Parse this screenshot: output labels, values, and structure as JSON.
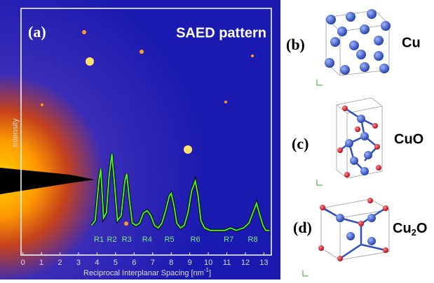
{
  "chart_data": {
    "type": "line",
    "panel_label": "(a)",
    "title": "SAED pattern",
    "x_label": "Reciprocal Interplanar Spacing [nm",
    "x_label_sup": "-1",
    "x_label_end": "]",
    "y_label": "Intensity",
    "x": [
      3.7,
      3.9,
      4.1,
      4.2,
      4.35,
      4.5,
      4.65,
      4.8,
      4.95,
      5.1,
      5.3,
      5.5,
      5.6,
      5.75,
      5.9,
      6.1,
      6.3,
      6.5,
      6.7,
      6.9,
      7.1,
      7.3,
      7.5,
      7.7,
      7.9,
      8.0,
      8.15,
      8.3,
      8.5,
      8.7,
      8.9,
      9.1,
      9.3,
      9.45,
      9.6,
      9.8,
      10.1,
      10.5,
      10.9,
      11.2,
      11.5,
      11.9,
      12.2,
      12.45,
      12.6,
      12.75,
      12.95,
      13.1,
      13.3
    ],
    "series": [
      {
        "name": "Intensity",
        "color": "#3cf03c",
        "values": [
          12,
          14,
          30,
          35,
          15,
          17,
          32,
          41,
          28,
          14,
          16,
          30,
          33,
          22,
          13,
          12,
          13,
          17,
          18,
          16,
          12,
          11,
          13,
          18,
          24,
          25,
          20,
          13,
          11,
          12,
          17,
          26,
          30,
          24,
          14,
          11,
          10,
          10,
          10,
          11,
          10,
          11,
          13,
          18,
          21,
          17,
          12,
          10,
          10
        ]
      }
    ],
    "peaks": [
      {
        "label": "R1",
        "x": 4.1
      },
      {
        "label": "R2",
        "x": 4.8
      },
      {
        "label": "R3",
        "x": 5.6
      },
      {
        "label": "R4",
        "x": 6.7
      },
      {
        "label": "R5",
        "x": 7.9
      },
      {
        "label": "R6",
        "x": 9.3
      },
      {
        "label": "R7",
        "x": 11.1
      },
      {
        "label": "R8",
        "x": 12.4
      }
    ],
    "xlim": [
      -0.1,
      13.4
    ],
    "xticks": [
      0,
      1,
      2,
      3,
      4,
      5,
      6,
      7,
      8,
      9,
      10,
      11,
      12,
      13
    ],
    "ylim": [
      0,
      100
    ]
  },
  "panels": [
    {
      "label": "(b)",
      "name": "Cu"
    },
    {
      "label": "(c)",
      "name": "CuO"
    },
    {
      "label": "(d)",
      "name": "Cu",
      "sub": "2",
      "name_end": "O"
    }
  ]
}
